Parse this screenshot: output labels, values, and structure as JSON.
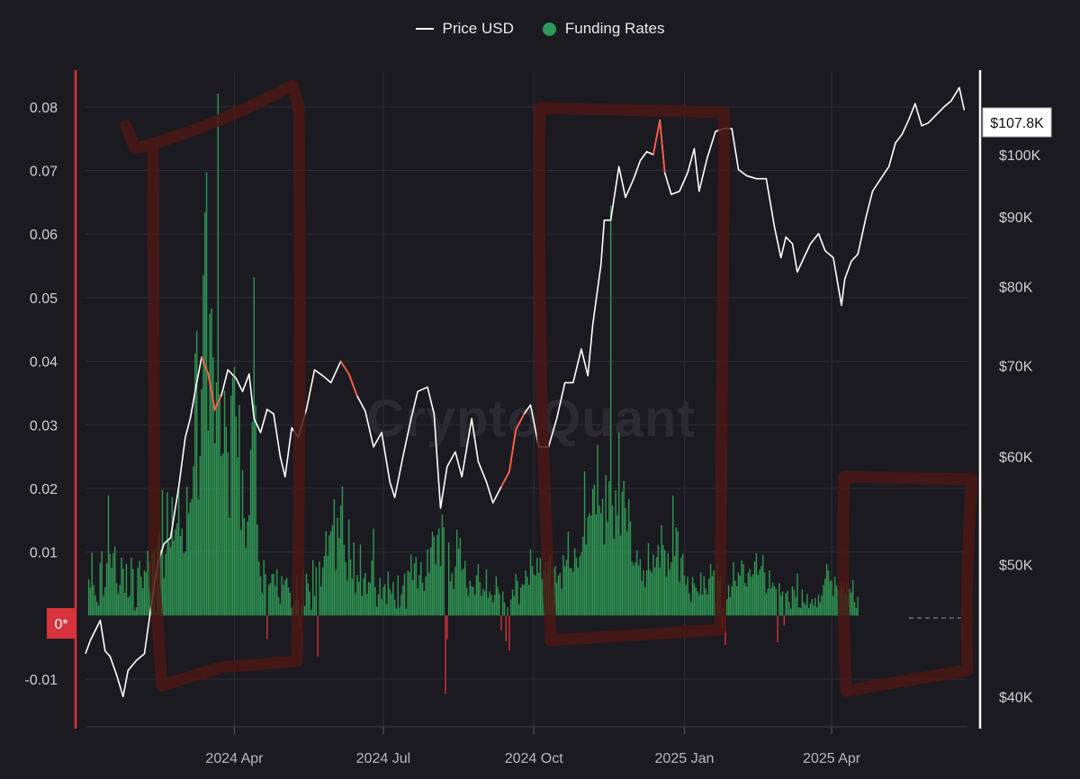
{
  "legend": {
    "price_label": "Price USD",
    "funding_label": "Funding Rates"
  },
  "watermark": "CryptoQuant",
  "zero_label": "0*",
  "last_price_label": "$107.8K",
  "colors": {
    "background": "#1b1a20",
    "grid": "#2f2e37",
    "price_line": "#ffffff",
    "price_highlight": "#ff5a45",
    "funding_positive": "#2f9a55",
    "funding_negative": "#d8323a",
    "left_axis": "#d8323a",
    "right_axis": "#ffffff",
    "annotation": "#4a1714"
  },
  "chart_data": {
    "type": "bar",
    "series": [
      {
        "name": "Price USD",
        "type": "line",
        "axis": "right"
      },
      {
        "name": "Funding Rates",
        "type": "bar",
        "axis": "left"
      }
    ],
    "left_axis": {
      "ticks": [
        "0.08",
        "0.07",
        "0.06",
        "0.05",
        "0.04",
        "0.03",
        "0.02",
        "0.01",
        "-0.01"
      ],
      "tick_values": [
        0.08,
        0.07,
        0.06,
        0.05,
        0.04,
        0.03,
        0.02,
        0.01,
        -0.01
      ],
      "range": [
        -0.0175,
        0.0855
      ]
    },
    "right_axis": {
      "scale": "log",
      "ticks": [
        "$100K",
        "$90K",
        "$80K",
        "$70K",
        "$60K",
        "$50K",
        "$40K"
      ],
      "tick_values": [
        100000,
        90000,
        80000,
        70000,
        60000,
        50000,
        40000
      ],
      "range": [
        38000,
        115000
      ]
    },
    "x_axis": {
      "ticks": [
        "2024 Apr",
        "2024 Jul",
        "2024 Oct",
        "2025 Jan",
        "2025 Apr"
      ],
      "tick_dates": [
        "2024-04-01",
        "2024-07-01",
        "2024-10-01",
        "2025-01-01",
        "2025-04-01"
      ],
      "range": [
        "2024-01-01",
        "2025-06-23"
      ]
    },
    "price": {
      "dates": [
        "2024-01-01",
        "2024-01-04",
        "2024-01-10",
        "2024-01-13",
        "2024-01-16",
        "2024-01-20",
        "2024-01-24",
        "2024-01-27",
        "2024-02-01",
        "2024-02-06",
        "2024-02-10",
        "2024-02-14",
        "2024-02-18",
        "2024-02-22",
        "2024-02-27",
        "2024-03-02",
        "2024-03-05",
        "2024-03-09",
        "2024-03-12",
        "2024-03-16",
        "2024-03-20",
        "2024-03-24",
        "2024-03-28",
        "2024-04-02",
        "2024-04-06",
        "2024-04-10",
        "2024-04-13",
        "2024-04-17",
        "2024-04-21",
        "2024-04-25",
        "2024-04-29",
        "2024-05-02",
        "2024-05-06",
        "2024-05-10",
        "2024-05-15",
        "2024-05-20",
        "2024-05-25",
        "2024-05-30",
        "2024-06-05",
        "2024-06-10",
        "2024-06-15",
        "2024-06-20",
        "2024-06-25",
        "2024-06-30",
        "2024-07-05",
        "2024-07-08",
        "2024-07-13",
        "2024-07-18",
        "2024-07-22",
        "2024-07-28",
        "2024-08-01",
        "2024-08-05",
        "2024-08-09",
        "2024-08-14",
        "2024-08-18",
        "2024-08-24",
        "2024-08-28",
        "2024-09-02",
        "2024-09-06",
        "2024-09-11",
        "2024-09-16",
        "2024-09-20",
        "2024-09-25",
        "2024-09-29",
        "2024-10-04",
        "2024-10-10",
        "2024-10-15",
        "2024-10-20",
        "2024-10-25",
        "2024-10-30",
        "2024-11-03",
        "2024-11-06",
        "2024-11-11",
        "2024-11-13",
        "2024-11-17",
        "2024-11-22",
        "2024-11-26",
        "2024-12-01",
        "2024-12-05",
        "2024-12-09",
        "2024-12-13",
        "2024-12-17",
        "2024-12-20",
        "2024-12-24",
        "2024-12-29",
        "2025-01-03",
        "2025-01-07",
        "2025-01-10",
        "2025-01-15",
        "2025-01-20",
        "2025-01-25",
        "2025-01-30",
        "2025-02-03",
        "2025-02-08",
        "2025-02-14",
        "2025-02-20",
        "2025-02-25",
        "2025-03-01",
        "2025-03-04",
        "2025-03-08",
        "2025-03-11",
        "2025-03-15",
        "2025-03-19",
        "2025-03-24",
        "2025-03-28",
        "2025-04-02",
        "2025-04-07",
        "2025-04-09",
        "2025-04-13",
        "2025-04-17",
        "2025-04-22",
        "2025-04-26",
        "2025-05-01",
        "2025-05-06",
        "2025-05-10",
        "2025-05-14",
        "2025-05-18",
        "2025-05-22",
        "2025-05-26",
        "2025-05-30",
        "2025-06-04",
        "2025-06-09",
        "2025-06-13",
        "2025-06-18",
        "2025-06-21"
      ],
      "values": [
        43000,
        44000,
        45500,
        43200,
        42800,
        41500,
        40000,
        41800,
        42500,
        43000,
        46500,
        50000,
        51800,
        52300,
        57000,
        62000,
        64000,
        68000,
        71000,
        69000,
        65000,
        66500,
        69500,
        68500,
        67000,
        69000,
        64000,
        62500,
        65000,
        64500,
        60000,
        58000,
        63000,
        62000,
        65000,
        69500,
        68800,
        68000,
        70500,
        69000,
        66500,
        64800,
        61000,
        62500,
        57500,
        56000,
        60000,
        64000,
        67000,
        67500,
        64500,
        55000,
        59000,
        60500,
        58000,
        64000,
        59500,
        57500,
        55500,
        57000,
        58500,
        62800,
        64500,
        65500,
        61000,
        61000,
        64000,
        68000,
        68000,
        72000,
        68800,
        75000,
        83000,
        89500,
        89500,
        98000,
        93000,
        96000,
        99000,
        100500,
        100000,
        106000,
        97000,
        93500,
        94000,
        97000,
        101000,
        94000,
        99500,
        104000,
        104500,
        104500,
        97500,
        96500,
        96000,
        96000,
        88500,
        84000,
        87000,
        86000,
        82000,
        84000,
        86000,
        87500,
        85000,
        84000,
        77500,
        81000,
        83500,
        84500,
        90000,
        94000,
        96000,
        98000,
        102000,
        103500,
        106000,
        109000,
        105000,
        105500,
        107000,
        108500,
        109500,
        112000,
        107800
      ]
    },
    "funding_rates": {
      "note": "daily funding-rate bars read from the chart, one value per day from 2024-01-03",
      "start_date": "2024-01-03",
      "values": [
        0.0057,
        0.0044,
        0.0099,
        0.0048,
        0.0032,
        0.0022,
        0.0016,
        0.0083,
        0.0101,
        0.0031,
        0.0045,
        0.0082,
        0.0189,
        0.0097,
        0.0075,
        0.0098,
        0.0109,
        0.0051,
        0.0034,
        0.0049,
        0.0091,
        0.0074,
        0.0036,
        0.0081,
        0.0028,
        0.0031,
        0.0091,
        0.0073,
        0.0008,
        0.0013,
        0.0075,
        0.0086,
        0.0061,
        0.0043,
        0.0071,
        0.0068,
        0.0102,
        0.0085,
        0.0038,
        0.0097,
        0.0105,
        0.0004,
        0.0111,
        0.0131,
        0.0104,
        0.0198,
        0.0059,
        0.0097,
        0.0194,
        0.0117,
        0.0108,
        0.0186,
        0.0118,
        0.0136,
        0.0145,
        0.0201,
        0.0125,
        0.0137,
        0.0098,
        0.0101,
        0.0203,
        0.0161,
        0.0178,
        0.0183,
        0.0235,
        0.0412,
        0.0448,
        0.0183,
        0.0251,
        0.0356,
        0.0535,
        0.0634,
        0.0697,
        0.0291,
        0.0475,
        0.0483,
        0.0406,
        0.0271,
        0.0367,
        0.0821,
        0.0348,
        0.0251,
        0.0255,
        0.0354,
        0.0297,
        0.0257,
        0.0154,
        0.0346,
        0.0375,
        0.0391,
        0.0313,
        0.0249,
        0.0331,
        0.0135,
        0.0229,
        0.0153,
        0.0107,
        0.0148,
        0.0158,
        0.0261,
        0.0305,
        0.0532,
        0.0331,
        0.0143,
        0.0085,
        0.0062,
        0.0035,
        0.0087,
        0.0065,
        -0.0037,
        0.0049,
        0.0051,
        0.0065,
        0.0066,
        0.0047,
        0.0073,
        0.0029,
        0.0018,
        0.0062,
        0.0048,
        0.0056,
        0.0059,
        0.0044,
        0.0036,
        0.0012,
        0.0015,
        0.0025,
        0.0064,
        0.0024,
        -0.0024,
        0.0018,
        0.0074,
        0.0015,
        0.0066,
        0.0051,
        0.0038,
        0.0009,
        0.0087,
        0.0031,
        0.0076,
        -0.0064,
        0.0085,
        0.0046,
        0.0076,
        0.0094,
        0.0133,
        0.0094,
        0.0126,
        0.0133,
        0.0142,
        0.0183,
        0.0072,
        0.0154,
        0.0122,
        0.0173,
        0.0203,
        0.0111,
        0.0084,
        0.0056,
        0.0151,
        0.0088,
        0.0058,
        0.0115,
        0.0035,
        0.0064,
        0.0053,
        0.0112,
        0.0031,
        0.0059,
        0.0067,
        0.0034,
        0.0053,
        0.0051,
        0.0087,
        0.0137,
        0.0045,
        0.0014,
        0.0033,
        0.0059,
        0.0026,
        0.0045,
        0.0049,
        0.0018,
        0.0069,
        0.0042,
        0.0035,
        0.0053,
        0.0025,
        0.0011,
        0.0063,
        0.0013,
        0.0033,
        0.0047,
        0.0066,
        0.0011,
        0.0071,
        0.0068,
        0.0096,
        0.0056,
        0.0082,
        0.0092,
        0.0043,
        0.0064,
        0.0084,
        0.0052,
        0.0039,
        0.0062,
        0.0104,
        0.0068,
        0.0107,
        0.0132,
        0.0124,
        0.0081,
        0.0127,
        0.0137,
        0.0078,
        0.0159,
        0.0139,
        -0.0123,
        -0.0037,
        0.0115,
        0.0054,
        0.0067,
        0.0042,
        0.0077,
        0.0135,
        0.0105,
        0.0122,
        0.0072,
        0.0074,
        0.0086,
        0.0044,
        0.0031,
        0.0055,
        0.0046,
        0.0045,
        0.0033,
        0.0063,
        0.0081,
        0.0053,
        0.0031,
        0.0042,
        0.0038,
        0.0073,
        0.0028,
        0.0038,
        0.0033,
        0.0021,
        0.0033,
        0.0062,
        0.0045,
        0.0034,
        -0.0023,
        0.0038,
        0.0021,
        -0.0041,
        0.0013,
        -0.0055,
        0.0025,
        0.0041,
        0.0031,
        0.0065,
        0.0055,
        0.0018,
        0.0044,
        0.0049,
        0.0048,
        0.0071,
        0.0061,
        0.0048,
        0.0104,
        0.0078,
        0.0065,
        0.0063,
        0.0091,
        0.0067,
        0.0091,
        0.0058,
        0.0071,
        0.0084,
        0.0064,
        0.0085,
        0.0096,
        0.0047,
        0.0074,
        0.0078,
        0.0052,
        0.0063,
        0.0067,
        0.0042,
        0.0095,
        0.0078,
        0.0088,
        0.0132,
        0.0075,
        0.0074,
        0.0069,
        0.0106,
        0.0091,
        0.0075,
        0.0093,
        0.0099,
        0.0124,
        0.0227,
        0.0112,
        0.0155,
        0.0161,
        0.0157,
        0.0199,
        0.0206,
        0.0159,
        0.0268,
        0.0173,
        0.0161,
        0.0184,
        0.0112,
        0.0221,
        0.0148,
        0.0211,
        0.0645,
        0.0173,
        0.0121,
        0.0197,
        0.0158,
        0.0288,
        0.0126,
        0.0195,
        0.0212,
        0.0169,
        0.0133,
        0.0183,
        0.0148,
        0.0085,
        0.0079,
        0.0084,
        0.0103,
        0.0079,
        0.0089,
        0.0055,
        0.0071,
        0.0045,
        0.0071,
        0.0114,
        0.0072,
        0.0068,
        0.0096,
        0.0076,
        0.0092,
        0.0111,
        0.0076,
        0.0142,
        0.0111,
        0.0103,
        0.0061,
        0.0098,
        0.0073,
        0.0084,
        0.0189,
        0.0094,
        0.0139,
        0.0133,
        0.0053,
        0.0091,
        0.0097,
        0.0063,
        0.0048,
        0.0061,
        0.0035,
        0.0022,
        0.0061,
        0.0051,
        0.0044,
        0.0038,
        0.0033,
        0.0068,
        0.0033,
        0.0062,
        0.0043,
        0.0033,
        0.0058,
        0.0081,
        0.0062,
        0.0071,
        0.0021,
        0.0082,
        0.0054,
        0.0062,
        -0.0021,
        0.0013,
        -0.0046,
        0.0026,
        0.0048,
        0.0029,
        0.0046,
        0.0084,
        0.0055,
        0.0046,
        0.0068,
        0.0063,
        0.0087,
        0.0081,
        0.0051,
        0.0046,
        0.0067,
        0.0073,
        0.0061,
        0.0065,
        0.0085,
        0.0098,
        0.0064,
        0.0072,
        0.0078,
        0.0095,
        0.0068,
        0.0035,
        0.0042,
        0.0071,
        0.0043,
        0.0052,
        0.0046,
        0.0042,
        -0.0042,
        0.0051,
        0.0032,
        0.0038,
        -0.0016,
        0.0035,
        0.0039,
        0.0021,
        0.0011,
        0.0046,
        0.0041,
        0.0029,
        0.0066,
        0.0013,
        0.0012,
        0.0041,
        0.0021,
        0.0017,
        0.0034,
        0.0012,
        0.0019,
        0.0026,
        0.0016,
        0.0028,
        0.0013,
        0.0033,
        0.0021,
        0.0032,
        0.0048,
        0.0058,
        0.0081,
        0.0071,
        0.0054,
        0.0056,
        0.0031,
        0.0061,
        0.0047,
        0.0041,
        0.0038,
        0.0052,
        0.0044,
        0.0035,
        0.0049,
        0.0032,
        0.0042,
        0.0036,
        0.0056,
        0.0021,
        0.0012,
        0.0029
      ]
    }
  }
}
